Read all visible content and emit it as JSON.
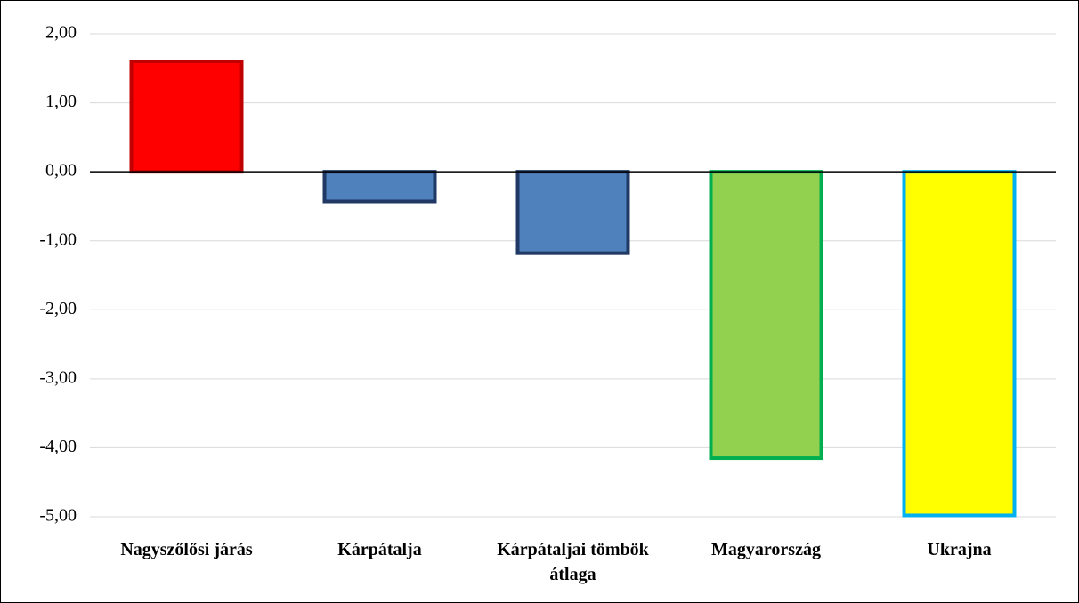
{
  "chart_data": {
    "type": "bar",
    "categories": [
      "Nagyszőlősi járás",
      "Kárpátalja",
      "Kárpátaljai tömbök átlaga",
      "Magyarország",
      "Ukrajna"
    ],
    "values": [
      1.6,
      -0.43,
      -1.18,
      -4.15,
      -4.98
    ],
    "colors": [
      "#ff0000",
      "#4f81bd",
      "#4f81bd",
      "#92d050",
      "#ffff00"
    ],
    "edge_colors": [
      "#c00000",
      "#1f3864",
      "#1f3864",
      "#00b050",
      "#00b0f0"
    ],
    "ylim": [
      -5,
      2
    ],
    "yticks": [
      {
        "value": 2,
        "label": "2,00"
      },
      {
        "value": 1,
        "label": "1,00"
      },
      {
        "value": 0,
        "label": "0,00"
      },
      {
        "value": -1,
        "label": "-1,00"
      },
      {
        "value": -2,
        "label": "-2,00"
      },
      {
        "value": -3,
        "label": "-3,00"
      },
      {
        "value": -4,
        "label": "-4,00"
      },
      {
        "value": -5,
        "label": "-5,00"
      }
    ],
    "grid": true
  }
}
